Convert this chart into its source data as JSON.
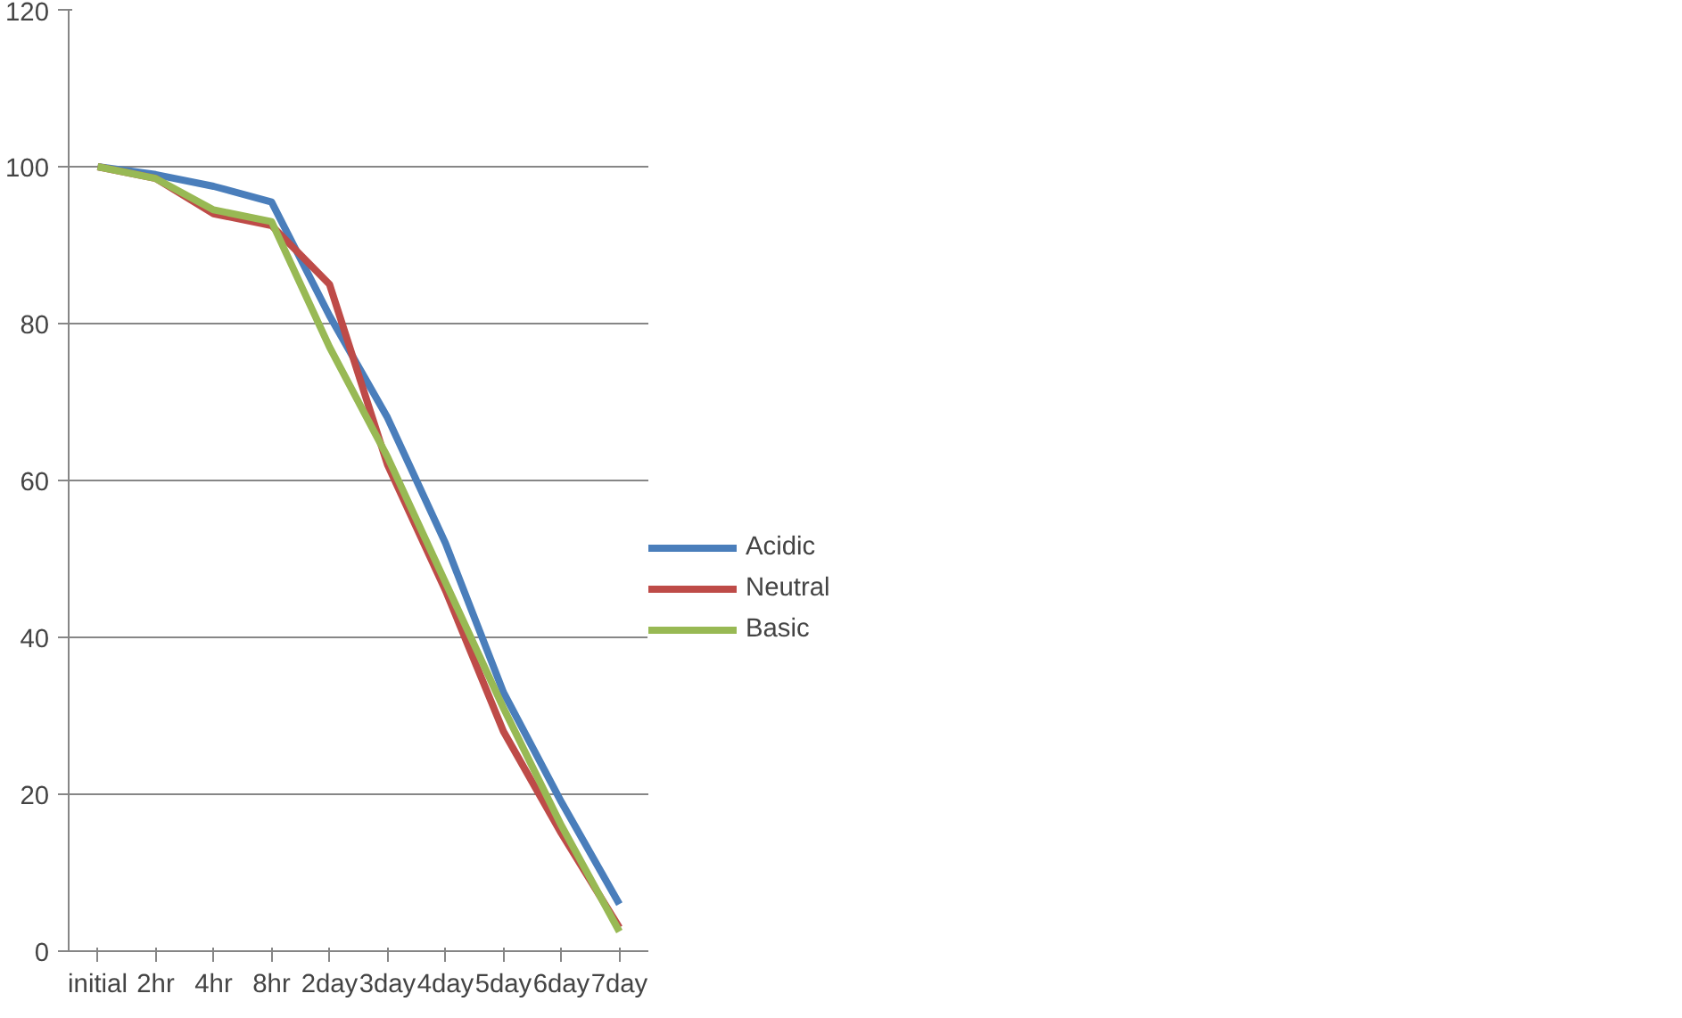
{
  "chart_data": {
    "type": "line",
    "categories": [
      "initial",
      "2hr",
      "4hr",
      "8hr",
      "2day",
      "3day",
      "4day",
      "5day",
      "6day",
      "7day"
    ],
    "series": [
      {
        "name": "Acidic",
        "color": "#4a7ebb",
        "values": [
          100,
          99,
          97.5,
          95.5,
          81,
          68,
          52,
          33,
          19,
          6
        ]
      },
      {
        "name": "Neutral",
        "color": "#be4b48",
        "values": [
          100,
          98.5,
          94,
          92.5,
          85,
          62,
          46,
          28,
          15,
          3
        ]
      },
      {
        "name": "Basic",
        "color": "#98b954",
        "values": [
          100,
          98.5,
          94.5,
          93,
          77,
          63,
          47,
          31,
          16,
          2.5
        ]
      }
    ],
    "ylim": [
      0,
      120
    ],
    "yticks": [
      0,
      20,
      40,
      60,
      80,
      100,
      120
    ],
    "grid": "y",
    "legend": "right",
    "marker": "none",
    "line_style": "solid"
  }
}
